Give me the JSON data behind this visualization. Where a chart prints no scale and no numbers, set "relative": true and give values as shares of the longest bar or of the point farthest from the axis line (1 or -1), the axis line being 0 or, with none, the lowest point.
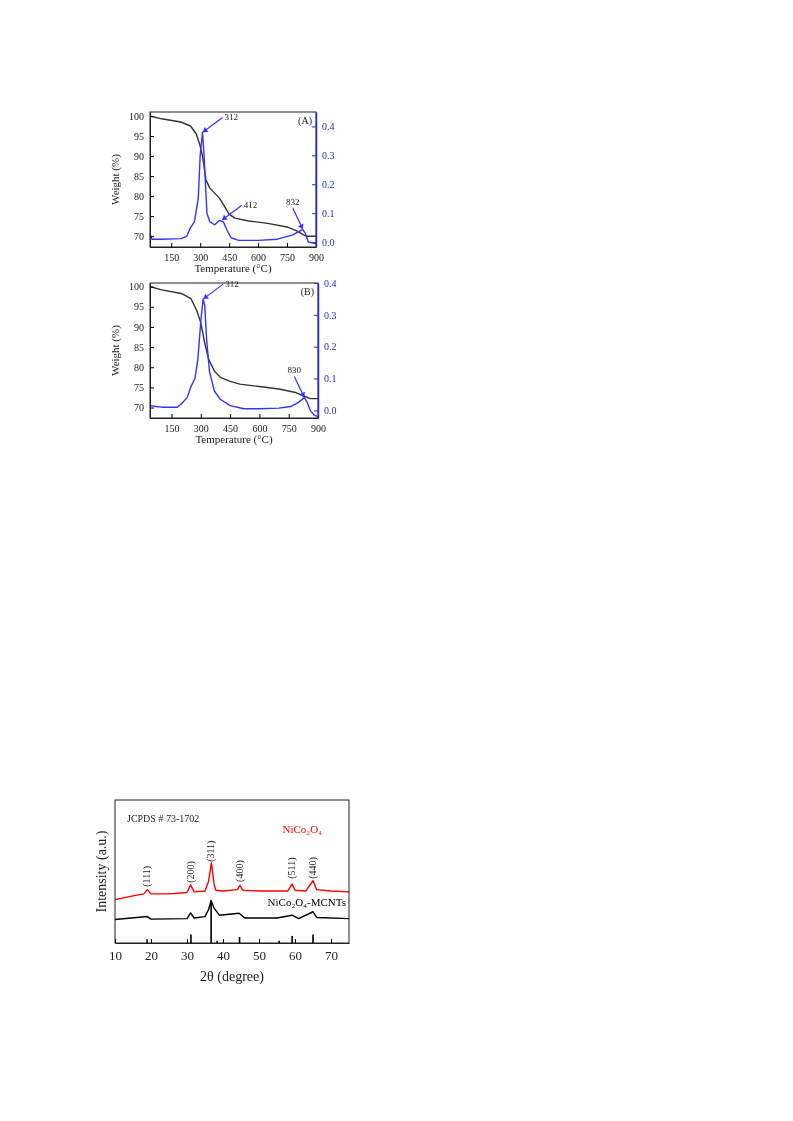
{
  "chart_data": [
    {
      "type": "line",
      "xlabel": "Temperature (°C)",
      "ylabel": "Weight (%)",
      "xlim": [
        40,
        900
      ],
      "xticks": [
        150,
        300,
        450,
        600,
        750,
        900
      ],
      "ylim": [
        67.3,
        101
      ],
      "yticks": [
        70,
        75,
        80,
        85,
        90,
        95,
        100
      ],
      "y2lim": [
        -0.017,
        0.45
      ],
      "y2ticks": [
        {
          "value": 0,
          "label": "0.0"
        },
        0.1,
        0.2,
        0.3,
        0.4
      ],
      "legend": false,
      "grid": false,
      "annotations": [
        "(A)",
        {
          "text": "312",
          "x": 312,
          "y": 95.9
        },
        {
          "text": "412",
          "x": 412,
          "y": 74
        },
        {
          "text": "832",
          "x": 832,
          "y": 71.7
        }
      ],
      "series": [
        {
          "color": "#333333",
          "x": [
            40,
            100,
            200,
            250,
            280,
            300,
            312,
            330,
            350,
            400,
            450,
            480,
            550,
            650,
            750,
            800,
            840,
            850,
            900
          ],
          "values": [
            100,
            99.3,
            98.5,
            97.5,
            95.5,
            92.5,
            90,
            84,
            82,
            79.5,
            75.5,
            74.5,
            73.8,
            73.2,
            72.3,
            71.3,
            70.2,
            70,
            70
          ]
        },
        {
          "color": "#3333ff",
          "axis": "y2",
          "x": [
            40,
            50,
            100,
            200,
            230,
            250,
            270,
            290,
            300,
            312,
            320,
            335,
            350,
            375,
            400,
            420,
            440,
            460,
            500,
            600,
            700,
            780,
            820,
            832,
            845,
            860,
            900
          ],
          "values": [
            0.03,
            0.01,
            0.01,
            0.012,
            0.02,
            0.05,
            0.07,
            0.15,
            0.3,
            0.38,
            0.3,
            0.1,
            0.07,
            0.06,
            0.075,
            0.07,
            0.04,
            0.015,
            0.006,
            0.006,
            0.01,
            0.025,
            0.04,
            0.043,
            0.03,
            0,
            -0.005
          ]
        }
      ]
    },
    {
      "type": "line",
      "xlabel": "Temperature (°C)",
      "ylabel": "Weight (%)",
      "xlim": [
        40,
        900
      ],
      "xticks": [
        150,
        300,
        450,
        600,
        750,
        900
      ],
      "ylim": [
        67.4,
        100.9
      ],
      "yticks": [
        70,
        75,
        80,
        85,
        90,
        95,
        100
      ],
      "y2lim": [
        -0.024,
        0.4
      ],
      "y2ticks": [
        {
          "value": 0,
          "label": "0.0"
        },
        0.1,
        0.2,
        0.3,
        0.4
      ],
      "legend": false,
      "grid": false,
      "annotations": [
        "(B)",
        {
          "text": "312",
          "x": 312,
          "y": 96.9
        },
        {
          "text": "830",
          "x": 830,
          "y": 72.5
        }
      ],
      "series": [
        {
          "color": "#333333",
          "x": [
            40,
            100,
            200,
            250,
            280,
            300,
            320,
            340,
            370,
            400,
            450,
            500,
            600,
            700,
            780,
            830,
            860,
            900
          ],
          "values": [
            100,
            99.2,
            98.3,
            97,
            94,
            91,
            86,
            82,
            79,
            77.5,
            76.5,
            75.8,
            75.2,
            74.6,
            73.8,
            72.8,
            72.2,
            72.2
          ]
        },
        {
          "color": "#3333ff",
          "axis": "y2",
          "x": [
            40,
            70,
            100,
            180,
            200,
            230,
            250,
            270,
            285,
            300,
            312,
            320,
            330,
            345,
            370,
            400,
            450,
            520,
            600,
            700,
            760,
            800,
            830,
            845,
            860,
            880,
            900
          ],
          "values": [
            0.015,
            0.012,
            0.01,
            0.01,
            0.02,
            0.04,
            0.075,
            0.1,
            0.16,
            0.28,
            0.35,
            0.33,
            0.22,
            0.12,
            0.06,
            0.035,
            0.015,
            0.005,
            0.005,
            0.007,
            0.012,
            0.025,
            0.04,
            0.025,
            0,
            -0.015,
            -0.02
          ]
        }
      ]
    },
    {
      "type": "line",
      "relative": true,
      "xlabel": "2θ (degree)",
      "ylabel": "Intensity (a.u.)",
      "xlim": [
        10,
        75
      ],
      "xticks": [
        10,
        20,
        30,
        40,
        50,
        60,
        70
      ],
      "tick_labels": "x",
      "legend": false,
      "grid": false,
      "annotations": [
        "JCPDS # 73-1702",
        {
          "text": "(111)",
          "x": 19,
          "y": 0.7
        },
        {
          "text": "(200)",
          "x": 31.1,
          "y": 0.75
        },
        {
          "text": "(311)",
          "x": 36.8,
          "y": 1.01
        },
        {
          "text": "(400)",
          "x": 44.7,
          "y": 0.76
        },
        {
          "text": "(511)",
          "x": 59.2,
          "y": 0.8
        },
        {
          "text": "(440)",
          "x": 65,
          "y": 0.8
        }
      ],
      "series": [
        {
          "name": "NiCo₂O₄",
          "color": "#ff0000",
          "x": [
            10,
            15,
            18,
            19,
            20,
            25,
            30,
            31,
            32,
            35,
            36,
            36.8,
            37.5,
            38,
            40,
            44,
            44.7,
            45.5,
            50,
            55,
            58,
            59.2,
            60,
            63,
            65,
            66,
            70,
            75
          ],
          "values": [
            0.54,
            0.587,
            0.611,
            0.664,
            0.611,
            0.611,
            0.629,
            0.724,
            0.636,
            0.647,
            0.77,
            1,
            0.735,
            0.657,
            0.647,
            0.664,
            0.717,
            0.657,
            0.647,
            0.647,
            0.647,
            0.735,
            0.657,
            0.647,
            0.777,
            0.664,
            0.647,
            0.636
          ]
        },
        {
          "name": "NiCo₂O₄-MCNTs",
          "color": "#000000",
          "x": [
            10,
            19,
            20,
            30,
            31,
            32,
            35,
            36,
            36.7,
            37.5,
            39,
            44.5,
            46,
            55,
            59.2,
            61,
            65,
            66,
            75
          ],
          "values": [
            0.293,
            0.329,
            0.297,
            0.304,
            0.375,
            0.311,
            0.329,
            0.417,
            0.53,
            0.435,
            0.346,
            0.371,
            0.311,
            0.311,
            0.346,
            0.304,
            0.389,
            0.318,
            0.304
          ]
        },
        {
          "type": "bar",
          "color": "#000000",
          "x": [
            18.9,
            31.1,
            36.7,
            38.4,
            44.6,
            55.6,
            59.2,
            65
          ],
          "values": [
            0.046,
            0.106,
            0.523,
            0.028,
            0.074,
            0.028,
            0.088,
            0.106
          ]
        }
      ]
    }
  ]
}
